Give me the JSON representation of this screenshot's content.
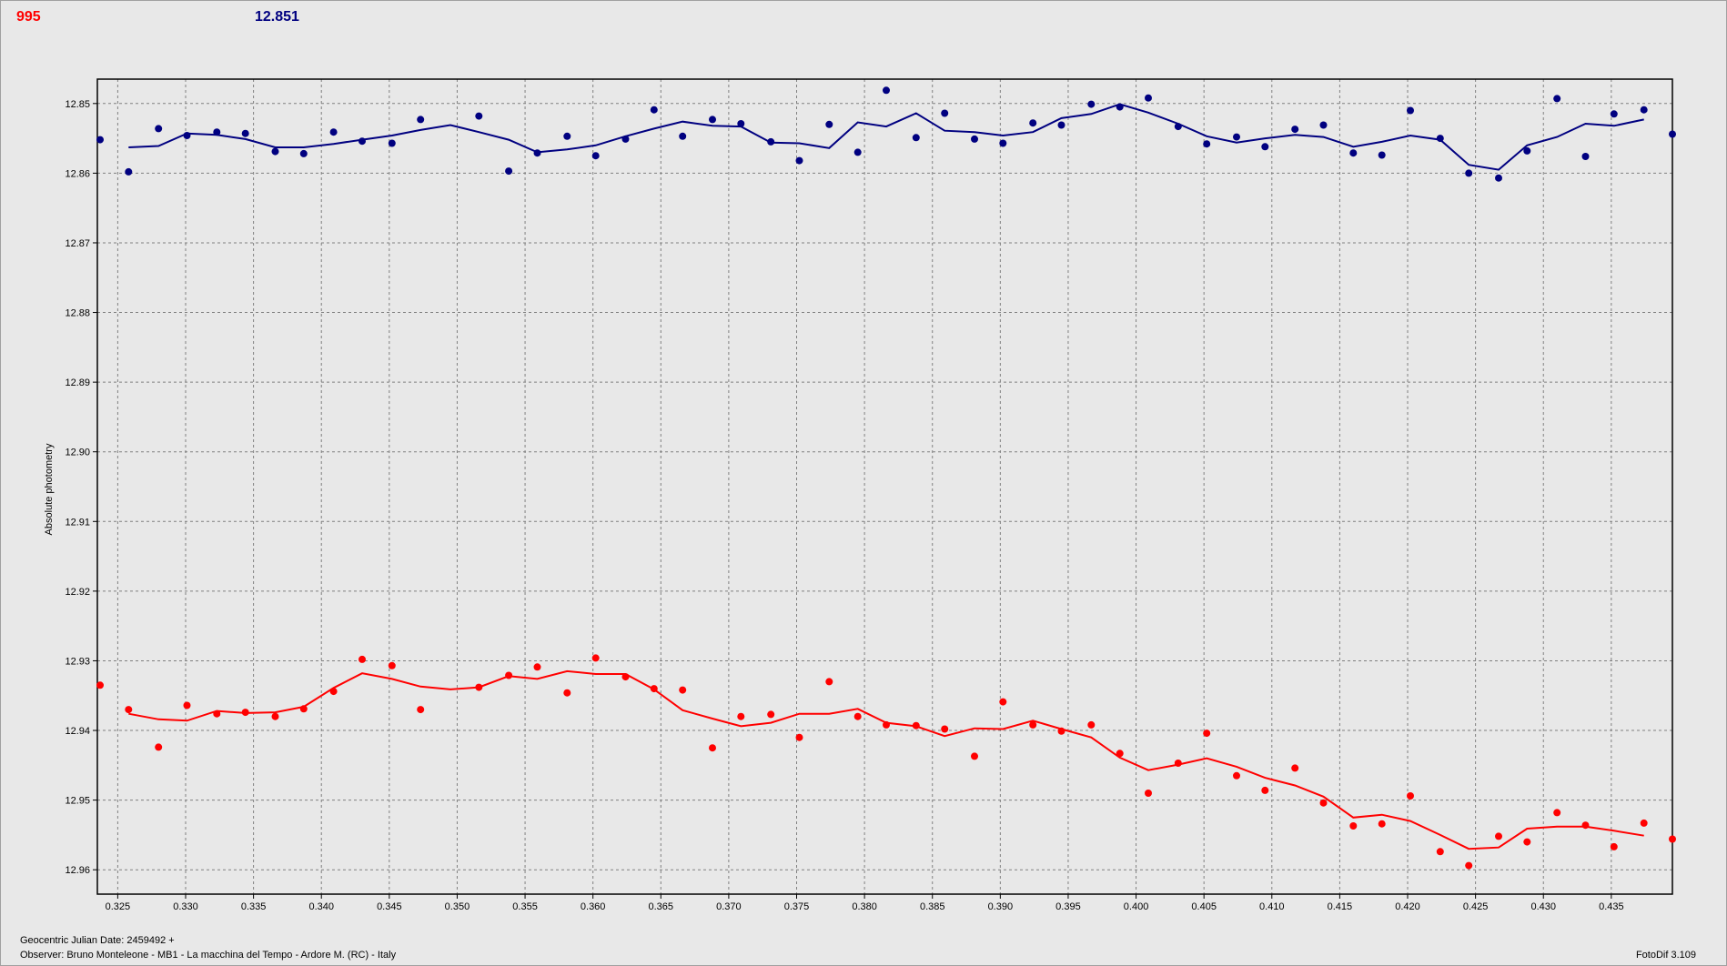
{
  "header": {
    "left_value": "995",
    "right_value": "12.851",
    "left_color": "#ff0000",
    "right_color": "#000080"
  },
  "footer": {
    "jd_label": "Geocentric Julian Date: 2459492 +",
    "observer": "Observer: Bruno Monteleone - MB1 - La macchina del Tempo - Ardore M. (RC) - Italy",
    "software": "FotoDif 3.109"
  },
  "chart_data": {
    "type": "scatter",
    "title": "",
    "xlabel": "",
    "ylabel": "Absolute photometry",
    "xlim": [
      0.3235,
      0.4395
    ],
    "ylim": [
      12.8465,
      12.9635
    ],
    "y_inverted": true,
    "grid": true,
    "x_ticks": [
      "0.325",
      "0.330",
      "0.335",
      "0.340",
      "0.345",
      "0.350",
      "0.355",
      "0.360",
      "0.365",
      "0.370",
      "0.375",
      "0.380",
      "0.385",
      "0.390",
      "0.395",
      "0.400",
      "0.405",
      "0.410",
      "0.415",
      "0.420",
      "0.425",
      "0.430",
      "0.435"
    ],
    "y_ticks": [
      "12.85",
      "12.86",
      "12.87",
      "12.88",
      "12.89",
      "12.90",
      "12.91",
      "12.92",
      "12.93",
      "12.94",
      "12.95",
      "12.96"
    ],
    "series": [
      {
        "color": "#000080",
        "x": [
          0.3237,
          0.3258,
          0.328,
          0.3301,
          0.3323,
          0.3344,
          0.3366,
          0.3387,
          0.3409,
          0.343,
          0.3452,
          0.3473,
          0.3516,
          0.3538,
          0.3559,
          0.3581,
          0.3602,
          0.3624,
          0.3645,
          0.3666,
          0.3688,
          0.3709,
          0.3731,
          0.3752,
          0.3774,
          0.3795,
          0.3816,
          0.3838,
          0.3859,
          0.3881,
          0.3902,
          0.3924,
          0.3945,
          0.3967,
          0.3988,
          0.4009,
          0.4031,
          0.4052,
          0.4074,
          0.4095,
          0.4117,
          0.4138,
          0.416,
          0.4181,
          0.4202,
          0.4224,
          0.4245,
          0.4267,
          0.4288,
          0.431,
          0.4331,
          0.4352,
          0.4374,
          0.4395
        ],
        "y": [
          12.8552,
          12.8598,
          12.8536,
          12.8546,
          12.8541,
          12.8543,
          12.8569,
          12.8572,
          12.8541,
          12.8554,
          12.8557,
          12.8523,
          12.8518,
          12.8597,
          12.8571,
          12.8547,
          12.8575,
          12.8551,
          12.8509,
          12.8547,
          12.8523,
          12.8529,
          12.8555,
          12.8582,
          12.853,
          12.857,
          12.8481,
          12.8549,
          12.8514,
          12.8551,
          12.8557,
          12.8528,
          12.8531,
          12.8501,
          12.8505,
          12.8492,
          12.8533,
          12.8558,
          12.8548,
          12.8562,
          12.8537,
          12.8531,
          12.8571,
          12.8574,
          12.851,
          12.855,
          12.86,
          12.8607,
          12.8568,
          12.8493,
          12.8576,
          12.8515,
          12.8509,
          12.8544
        ],
        "smooth_x": [
          0.3258,
          0.328,
          0.3301,
          0.3323,
          0.3344,
          0.3366,
          0.3387,
          0.3409,
          0.343,
          0.3452,
          0.3473,
          0.3495,
          0.3516,
          0.3538,
          0.3559,
          0.3581,
          0.3602,
          0.3624,
          0.3645,
          0.3666,
          0.3688,
          0.3709,
          0.3731,
          0.3752,
          0.3774,
          0.3795,
          0.3816,
          0.3838,
          0.3859,
          0.3881,
          0.3902,
          0.3924,
          0.3945,
          0.3967,
          0.3988,
          0.4009,
          0.4031,
          0.4052,
          0.4074,
          0.4095,
          0.4117,
          0.4138,
          0.416,
          0.4181,
          0.4202,
          0.4224,
          0.4245,
          0.4267,
          0.4288,
          0.431,
          0.4331,
          0.4352,
          0.4374
        ],
        "smooth_y": [
          12.8563,
          12.8561,
          12.8543,
          12.8545,
          12.8551,
          12.8563,
          12.8563,
          12.8558,
          12.8552,
          12.8546,
          12.8538,
          12.8531,
          12.8541,
          12.8552,
          12.857,
          12.8566,
          12.856,
          12.8547,
          12.8536,
          12.8526,
          12.8532,
          12.8533,
          12.8556,
          12.8557,
          12.8564,
          12.8527,
          12.8533,
          12.8514,
          12.8539,
          12.8541,
          12.8546,
          12.8541,
          12.8521,
          12.8515,
          12.8501,
          12.8513,
          12.8529,
          12.8547,
          12.8556,
          12.855,
          12.8545,
          12.8548,
          12.8562,
          12.8555,
          12.8546,
          12.8552,
          12.8588,
          12.8595,
          12.856,
          12.8548,
          12.8529,
          12.8532,
          12.8523
        ]
      },
      {
        "color": "#ff0000",
        "x": [
          0.3237,
          0.3258,
          0.328,
          0.3301,
          0.3323,
          0.3344,
          0.3366,
          0.3387,
          0.3409,
          0.343,
          0.3452,
          0.3473,
          0.3516,
          0.3538,
          0.3559,
          0.3581,
          0.3602,
          0.3624,
          0.3645,
          0.3666,
          0.3688,
          0.3709,
          0.3731,
          0.3752,
          0.3774,
          0.3795,
          0.3816,
          0.3838,
          0.3859,
          0.3881,
          0.3902,
          0.3924,
          0.3945,
          0.3967,
          0.3988,
          0.4009,
          0.4031,
          0.4052,
          0.4074,
          0.4095,
          0.4117,
          0.4138,
          0.416,
          0.4181,
          0.4202,
          0.4224,
          0.4245,
          0.4267,
          0.4288,
          0.431,
          0.4331,
          0.4352,
          0.4374,
          0.4395
        ],
        "y": [
          12.9335,
          12.937,
          12.9424,
          12.9364,
          12.9376,
          12.9374,
          12.938,
          12.9369,
          12.9344,
          12.9298,
          12.9307,
          12.937,
          12.9338,
          12.9321,
          12.9309,
          12.9346,
          12.9296,
          12.9323,
          12.934,
          12.9342,
          12.9425,
          12.938,
          12.9377,
          12.941,
          12.933,
          12.938,
          12.9392,
          12.9393,
          12.9398,
          12.9437,
          12.9359,
          12.9392,
          12.9401,
          12.9392,
          12.9433,
          12.949,
          12.9447,
          12.9404,
          12.9465,
          12.9486,
          12.9454,
          12.9504,
          12.9537,
          12.9534,
          12.9494,
          12.9574,
          12.9594,
          12.9552,
          12.956,
          12.9518,
          12.9536,
          12.9567,
          12.9533,
          12.9556
        ],
        "smooth_x": [
          0.3258,
          0.328,
          0.3301,
          0.3323,
          0.3344,
          0.3366,
          0.3387,
          0.3409,
          0.343,
          0.3452,
          0.3473,
          0.3495,
          0.3516,
          0.3538,
          0.3559,
          0.3581,
          0.3602,
          0.3624,
          0.3645,
          0.3666,
          0.3688,
          0.3709,
          0.3731,
          0.3752,
          0.3774,
          0.3795,
          0.3816,
          0.3838,
          0.3859,
          0.3881,
          0.3902,
          0.3924,
          0.3945,
          0.3967,
          0.3988,
          0.4009,
          0.4031,
          0.4052,
          0.4074,
          0.4095,
          0.4117,
          0.4138,
          0.416,
          0.4181,
          0.4202,
          0.4224,
          0.4245,
          0.4267,
          0.4288,
          0.431,
          0.4331,
          0.4352,
          0.4374
        ],
        "smooth_y": [
          12.9376,
          12.9384,
          12.9386,
          12.9372,
          12.9375,
          12.9374,
          12.9366,
          12.9339,
          12.9318,
          12.9326,
          12.9337,
          12.9341,
          12.9338,
          12.9322,
          12.9326,
          12.9315,
          12.9319,
          12.9319,
          12.9341,
          12.9371,
          12.9383,
          12.9394,
          12.9389,
          12.9376,
          12.9376,
          12.9369,
          12.9389,
          12.9394,
          12.9408,
          12.9397,
          12.9398,
          12.9386,
          12.9398,
          12.941,
          12.9439,
          12.9457,
          12.9449,
          12.944,
          12.9452,
          12.9468,
          12.9479,
          12.9495,
          12.9525,
          12.9521,
          12.953,
          12.955,
          12.957,
          12.9568,
          12.9541,
          12.9538,
          12.9538,
          12.9544,
          12.9551
        ]
      }
    ]
  }
}
